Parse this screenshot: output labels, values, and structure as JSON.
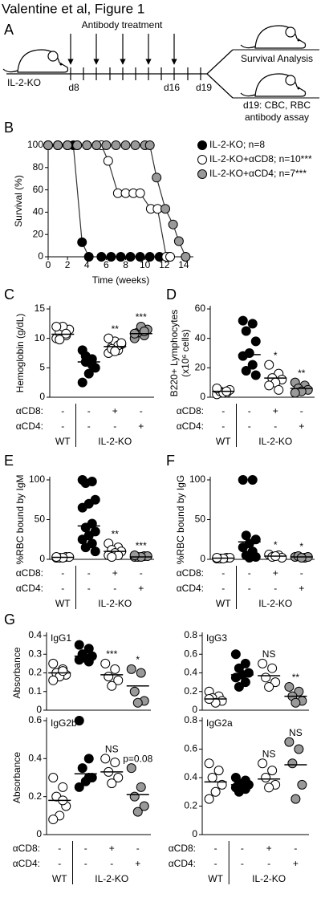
{
  "figure_title": "Valentine et al, Figure 1",
  "panel_a": {
    "letter": "A",
    "treatment_label": "Antibody treatment",
    "mouse_label": "IL-2-KO",
    "day_labels": [
      "d8",
      "d16",
      "d19"
    ],
    "outcomes": [
      "Survival Analysis",
      "d19: CBC, RBC",
      "antibody assay"
    ]
  },
  "chart_data": [
    {
      "type": "line",
      "panel": "B",
      "ylabel": "Survival (%)",
      "xlabel": "Time (weeks)",
      "xlim": [
        0,
        15
      ],
      "xticks": [
        0,
        2,
        4,
        6,
        8,
        10,
        12,
        14
      ],
      "ylim": [
        0,
        100
      ],
      "yticks": [
        0,
        20,
        40,
        60,
        80,
        100
      ],
      "series": [
        {
          "name": "IL-2-KO; n=8",
          "color": "#000000",
          "x": [
            0,
            1,
            2,
            2.6,
            3.5,
            4.2,
            5.5,
            6.5,
            7.5,
            8.5,
            9.5,
            10.5,
            11.5,
            12.5
          ],
          "values": [
            100,
            100,
            100,
            100,
            13,
            0,
            0,
            0,
            0,
            0,
            0,
            0,
            0,
            0
          ]
        },
        {
          "name": "IL-2-KO+αCD8; n=10***",
          "color": "#ffffff",
          "x": [
            0,
            1,
            2,
            3,
            4,
            5,
            5.5,
            6.2,
            7.2,
            8,
            8.8,
            9.5,
            10.6,
            11.3,
            12.2,
            12.6
          ],
          "values": [
            100,
            100,
            100,
            100,
            100,
            100,
            100,
            86,
            57,
            57,
            57,
            57,
            43,
            43,
            0,
            0
          ]
        },
        {
          "name": "IL-2-KO+αCD4; n=7***",
          "color": "#999999",
          "x": [
            0,
            1,
            2,
            3,
            4,
            5,
            6,
            7,
            8,
            9,
            10,
            10.5,
            11.2,
            12.1,
            12.9,
            13.5,
            14.2
          ],
          "values": [
            100,
            100,
            100,
            100,
            100,
            100,
            100,
            100,
            100,
            100,
            100,
            100,
            71,
            43,
            29,
            14,
            0
          ]
        }
      ]
    },
    {
      "type": "dot",
      "panel": "C",
      "ylabel": "Hemoglobin (g/dL)",
      "ylim": [
        0,
        15
      ],
      "yticks": [
        0,
        5,
        10,
        15
      ],
      "groups": [
        {
          "fill": "#ffffff",
          "values": [
            10,
            10.5,
            11,
            11.5,
            12,
            12,
            10.8,
            9.8
          ],
          "mean": 10.7
        },
        {
          "fill": "#000000",
          "values": [
            8,
            6.5,
            6,
            5,
            4,
            2.5,
            5.5,
            7
          ],
          "mean": 6
        },
        {
          "fill": "#ffffff",
          "values": [
            7.5,
            8,
            8.5,
            9,
            9.5,
            10,
            8.8,
            8.2,
            9.2,
            7.8
          ],
          "mean": 8.6,
          "annotation": "**"
        },
        {
          "fill": "#999999",
          "values": [
            10,
            10.5,
            11,
            11.5,
            12,
            10.8,
            11.2
          ],
          "mean": 10.8,
          "annotation": "***"
        }
      ],
      "treatments": {
        "labels": [
          "αCD8:",
          "αCD4:"
        ],
        "rows": [
          [
            "-",
            "-",
            "+",
            "-"
          ],
          [
            "-",
            "-",
            "-",
            "+"
          ]
        ],
        "groups": [
          "WT",
          "IL-2-KO"
        ]
      }
    },
    {
      "type": "dot",
      "panel": "D",
      "ylabel": [
        "B220+ Lymphocytes",
        "(x10⁶ cells)"
      ],
      "ylim": [
        0,
        60
      ],
      "yticks": [
        0,
        20,
        40,
        60
      ],
      "groups": [
        {
          "fill": "#ffffff",
          "values": [
            2,
            3,
            4,
            5,
            3,
            6,
            4
          ],
          "mean": 4
        },
        {
          "fill": "#000000",
          "values": [
            52,
            50,
            45,
            38,
            30,
            28,
            22,
            18,
            15
          ],
          "mean": 29
        },
        {
          "fill": "#ffffff",
          "values": [
            22,
            16,
            13,
            12,
            10,
            8,
            5
          ],
          "mean": 13,
          "annotation": "*"
        },
        {
          "fill": "#999999",
          "values": [
            10,
            8,
            6,
            5,
            4,
            3
          ],
          "mean": 6,
          "annotation": "**"
        }
      ],
      "treatments": {
        "labels": [
          "αCD8:",
          "αCD4:"
        ],
        "rows": [
          [
            "-",
            "-",
            "+",
            "-"
          ],
          [
            "-",
            "-",
            "-",
            "+"
          ]
        ],
        "groups": [
          "WT",
          "IL-2-KO"
        ]
      }
    },
    {
      "type": "dot",
      "panel": "E",
      "ylabel": "%RBC bound by IgM",
      "ylim": [
        0,
        100
      ],
      "yticks": [
        0,
        50,
        100
      ],
      "groups": [
        {
          "fill": "#ffffff",
          "values": [
            2,
            3,
            2,
            3,
            2,
            3
          ],
          "mean": 2.5
        },
        {
          "fill": "#000000",
          "values": [
            100,
            98,
            96,
            75,
            70,
            65,
            45,
            40,
            35,
            30,
            25,
            20,
            15,
            10
          ],
          "mean": 42
        },
        {
          "fill": "#ffffff",
          "values": [
            20,
            15,
            12,
            10,
            8,
            5,
            5,
            3
          ],
          "mean": 10,
          "annotation": "**"
        },
        {
          "fill": "#999999",
          "values": [
            3,
            4,
            3,
            4,
            3,
            5
          ],
          "mean": 3,
          "annotation": "***"
        }
      ],
      "treatments": {
        "labels": [
          "αCD8:",
          "αCD4:"
        ],
        "rows": [
          [
            "-",
            "-",
            "+",
            "-"
          ],
          [
            "-",
            "-",
            "-",
            "+"
          ]
        ],
        "groups": [
          "WT",
          "IL-2-KO"
        ]
      }
    },
    {
      "type": "dot",
      "panel": "F",
      "ylabel": "%RBC bound by IgG",
      "ylim": [
        0,
        100
      ],
      "yticks": [
        0,
        50,
        100
      ],
      "groups": [
        {
          "fill": "#ffffff",
          "values": [
            1,
            2,
            1,
            2,
            1,
            2
          ],
          "mean": 1.5
        },
        {
          "fill": "#000000",
          "values": [
            100,
            100,
            30,
            25,
            20,
            15,
            10,
            5,
            3,
            2
          ],
          "mean": 22
        },
        {
          "fill": "#ffffff",
          "values": [
            6,
            5,
            3,
            2,
            4
          ],
          "mean": 4,
          "annotation": "*"
        },
        {
          "fill": "#999999",
          "values": [
            3,
            2,
            4,
            3,
            2
          ],
          "mean": 3,
          "annotation": "*"
        }
      ],
      "treatments": {
        "labels": [
          "αCD8:",
          "αCD4:"
        ],
        "rows": [
          [
            "-",
            "-",
            "+",
            "-"
          ],
          [
            "-",
            "-",
            "-",
            "+"
          ]
        ],
        "groups": [
          "WT",
          "IL-2-KO"
        ]
      }
    },
    {
      "type": "dot",
      "panel": "G",
      "title": "IgG1",
      "ylabel": "Absorbance",
      "ylim": [
        0,
        0.4
      ],
      "yticks": [
        0,
        0.1,
        0.2,
        0.3,
        0.4
      ],
      "groups": [
        {
          "fill": "#ffffff",
          "values": [
            0.25,
            0.22,
            0.2,
            0.19,
            0.18,
            0.16,
            0.21
          ],
          "mean": 0.2
        },
        {
          "fill": "#000000",
          "values": [
            0.35,
            0.33,
            0.3,
            0.29,
            0.28,
            0.27,
            0.26,
            0.3
          ],
          "mean": 0.29
        },
        {
          "fill": "#ffffff",
          "values": [
            0.25,
            0.22,
            0.18,
            0.16,
            0.13
          ],
          "mean": 0.19,
          "annotation": "***"
        },
        {
          "fill": "#999999",
          "values": [
            0.22,
            0.2,
            0.1,
            0.05,
            0.04
          ],
          "mean": 0.13,
          "annotation": "*"
        }
      ]
    },
    {
      "type": "dot",
      "title": "IgG3",
      "ylim": [
        0,
        0.8
      ],
      "yticks": [
        0,
        0.2,
        0.4,
        0.6,
        0.8
      ],
      "groups": [
        {
          "fill": "#ffffff",
          "values": [
            0.2,
            0.15,
            0.13,
            0.1,
            0.08,
            0.12
          ],
          "mean": 0.12
        },
        {
          "fill": "#000000",
          "values": [
            0.6,
            0.5,
            0.45,
            0.4,
            0.38,
            0.35,
            0.3,
            0.25
          ],
          "mean": 0.38
        },
        {
          "fill": "#ffffff",
          "values": [
            0.5,
            0.45,
            0.35,
            0.3,
            0.25
          ],
          "mean": 0.37,
          "annotation": "NS"
        },
        {
          "fill": "#999999",
          "values": [
            0.25,
            0.2,
            0.15,
            0.1,
            0.08
          ],
          "mean": 0.15,
          "annotation": "**"
        }
      ]
    },
    {
      "type": "dot",
      "title": "IgG2b",
      "ylabel": "Absorbance",
      "ylim": [
        0,
        0.6
      ],
      "yticks": [
        0,
        0.2,
        0.4,
        0.6
      ],
      "groups": [
        {
          "fill": "#ffffff",
          "values": [
            0.3,
            0.25,
            0.2,
            0.15,
            0.1,
            0.08,
            0.18
          ],
          "mean": 0.18
        },
        {
          "fill": "#000000",
          "values": [
            0.6,
            0.4,
            0.35,
            0.3,
            0.28,
            0.25,
            0.3
          ],
          "mean": 0.32
        },
        {
          "fill": "#ffffff",
          "values": [
            0.4,
            0.38,
            0.33,
            0.3,
            0.27
          ],
          "mean": 0.33,
          "annotation": "NS"
        },
        {
          "fill": "#999999",
          "values": [
            0.35,
            0.25,
            0.2,
            0.15,
            0.12
          ],
          "mean": 0.21,
          "annotation": "p=0.08"
        }
      ],
      "treatments": {
        "labels": [
          "αCD8:",
          "αCD4:"
        ],
        "rows": [
          [
            "-",
            "-",
            "+",
            "-"
          ],
          [
            "-",
            "-",
            "-",
            "+"
          ]
        ],
        "groups": [
          "WT",
          "IL-2-KO"
        ]
      }
    },
    {
      "type": "dot",
      "title": "IgG2a",
      "ylim": [
        0,
        0.8
      ],
      "yticks": [
        0,
        0.2,
        0.4,
        0.6,
        0.8
      ],
      "groups": [
        {
          "fill": "#ffffff",
          "values": [
            0.5,
            0.45,
            0.4,
            0.35,
            0.3,
            0.25
          ],
          "mean": 0.37
        },
        {
          "fill": "#000000",
          "values": [
            0.4,
            0.38,
            0.36,
            0.35,
            0.34,
            0.33,
            0.32,
            0.3
          ],
          "mean": 0.35
        },
        {
          "fill": "#ffffff",
          "values": [
            0.5,
            0.45,
            0.4,
            0.35,
            0.33
          ],
          "mean": 0.39,
          "annotation": "NS"
        },
        {
          "fill": "#999999",
          "values": [
            0.65,
            0.6,
            0.5,
            0.35,
            0.25
          ],
          "mean": 0.49,
          "annotation": "NS"
        }
      ],
      "treatments": {
        "labels": [
          "αCD8:",
          "αCD4:"
        ],
        "rows": [
          [
            "-",
            "-",
            "+",
            "-"
          ],
          [
            "-",
            "-",
            "-",
            "+"
          ]
        ],
        "groups": [
          "WT",
          "IL-2-KO"
        ]
      }
    }
  ]
}
